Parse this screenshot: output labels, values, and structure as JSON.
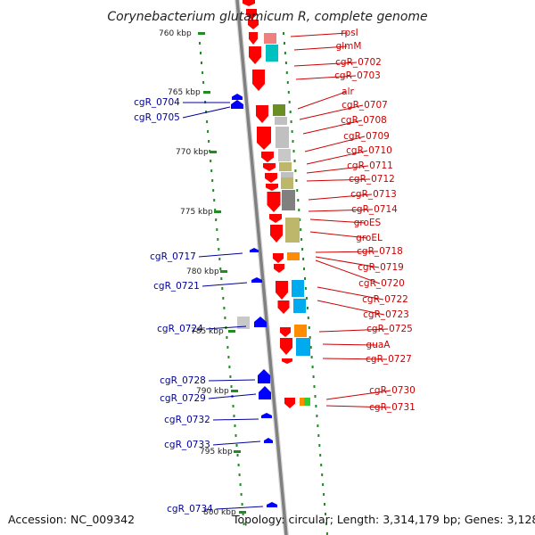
{
  "title": "Corynebacterium glutamicum R, complete genome",
  "footer": {
    "accession": "Accession: NC_009342",
    "summary": "Topology: circular; Length: 3,314,179 bp; Genes: 3,128"
  },
  "colors": {
    "forward_gene": "#ff0000",
    "reverse_gene": "#0000ff",
    "forward_label": "#cc0000",
    "reverse_label": "#000099",
    "tick": "#228b22",
    "backbone": "#808080"
  },
  "scale": {
    "unit": "kbp",
    "ticks": [
      {
        "label": "760 kbp"
      },
      {
        "label": "765 kbp"
      },
      {
        "label": "770 kbp"
      },
      {
        "label": "775 kbp"
      },
      {
        "label": "780 kbp"
      },
      {
        "label": "785 kbp"
      },
      {
        "label": "790 kbp"
      },
      {
        "label": "795 kbp"
      },
      {
        "label": "800 kbp"
      }
    ]
  },
  "genes_forward": [
    {
      "label": "rpsI"
    },
    {
      "label": "glmM"
    },
    {
      "label": "cgR_0702"
    },
    {
      "label": "cgR_0703"
    },
    {
      "label": "alr"
    },
    {
      "label": "cgR_0707"
    },
    {
      "label": "cgR_0708"
    },
    {
      "label": "cgR_0709"
    },
    {
      "label": "cgR_0710"
    },
    {
      "label": "cgR_0711"
    },
    {
      "label": "cgR_0712"
    },
    {
      "label": "cgR_0713"
    },
    {
      "label": "cgR_0714"
    },
    {
      "label": "groES"
    },
    {
      "label": "groEL"
    },
    {
      "label": "cgR_0718"
    },
    {
      "label": "cgR_0719"
    },
    {
      "label": "cgR_0720"
    },
    {
      "label": "cgR_0722"
    },
    {
      "label": "cgR_0723"
    },
    {
      "label": "cgR_0725"
    },
    {
      "label": "guaA"
    },
    {
      "label": "cgR_0727"
    },
    {
      "label": "cgR_0730"
    },
    {
      "label": "cgR_0731"
    }
  ],
  "genes_reverse": [
    {
      "label": "cgR_0704"
    },
    {
      "label": "cgR_0705"
    },
    {
      "label": "cgR_0717"
    },
    {
      "label": "cgR_0721"
    },
    {
      "label": "cgR_0724"
    },
    {
      "label": "cgR_0728"
    },
    {
      "label": "cgR_0729"
    },
    {
      "label": "cgR_0732"
    },
    {
      "label": "cgR_0733"
    },
    {
      "label": "cgR_0734"
    }
  ]
}
